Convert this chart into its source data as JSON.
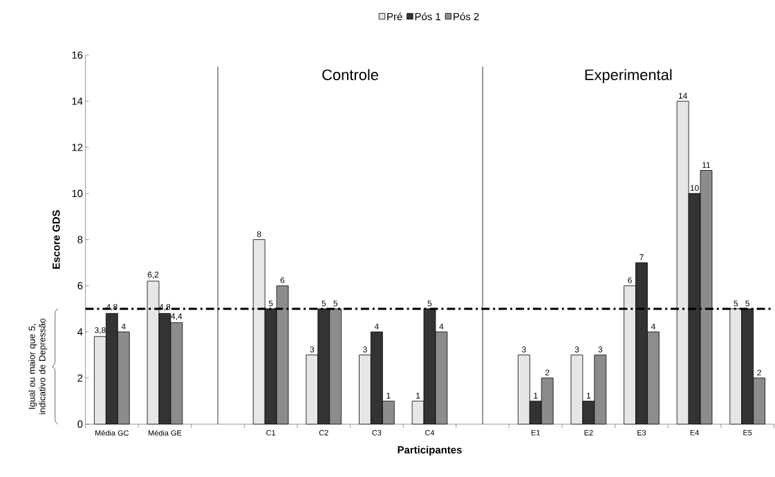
{
  "chart_data": {
    "type": "bar",
    "xlabel": "Participantes",
    "ylabel": "Escore GDS",
    "categories": [
      "Média GC",
      "Média GE",
      null,
      "C1",
      "C2",
      "C3",
      "C4",
      null,
      "E1",
      "E2",
      "E3",
      "E4",
      "E5"
    ],
    "series": [
      {
        "name": "Pré",
        "color": "#e6e6e6",
        "values": [
          3.8,
          6.2,
          null,
          8,
          3,
          3,
          1,
          null,
          3,
          3,
          6,
          14,
          5
        ],
        "value_labels": [
          "3,8",
          "6,2",
          null,
          "8",
          "3",
          "3",
          "1",
          null,
          "3",
          "3",
          "6",
          "14",
          "5"
        ]
      },
      {
        "name": "Pós 1",
        "color": "#333333",
        "values": [
          4.8,
          4.8,
          null,
          5,
          5,
          4,
          5,
          null,
          1,
          1,
          7,
          10,
          5
        ],
        "value_labels": [
          "4,8",
          "4,8",
          null,
          "5",
          "5",
          "4",
          "5",
          null,
          "1",
          "1",
          "7",
          "10",
          "5"
        ]
      },
      {
        "name": "Pós 2",
        "color": "#8c8c8c",
        "values": [
          4,
          4.4,
          null,
          6,
          5,
          1,
          4,
          null,
          2,
          3,
          4,
          11,
          2
        ],
        "value_labels": [
          "4",
          "4,4",
          null,
          "6",
          "5",
          "1",
          "4",
          null,
          "2",
          "3",
          "4",
          "11",
          "2"
        ]
      }
    ],
    "ylim": [
      0,
      16
    ],
    "yticks": [
      0,
      2,
      4,
      6,
      8,
      10,
      12,
      14,
      16
    ],
    "legend": "top",
    "ref_lines": [
      {
        "axis": "y",
        "value": 5,
        "line_style": "dashdot",
        "color": "#000000"
      }
    ],
    "annotations": [
      "Controle",
      "Experimental",
      "Igual ou maior que 5, indicativo de Depressão"
    ]
  }
}
